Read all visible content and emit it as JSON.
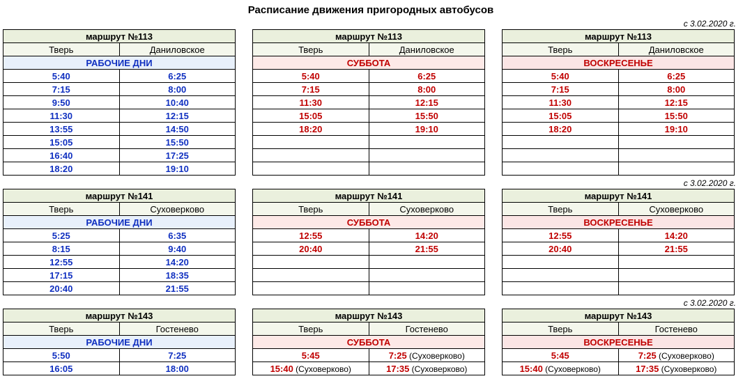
{
  "title": "Расписание движения пригородных автобусов",
  "effective_date": "с 3.02.2020 г.",
  "day_labels": {
    "weekday": "РАБОЧИЕ ДНИ",
    "saturday": "СУББОТА",
    "sunday": "ВОСКРЕСЕНЬЕ"
  },
  "colors": {
    "header_bg": "#eaf0dd",
    "stops_bg": "#f4f7ec",
    "weekday_bg": "#e8f0fb",
    "saturday_bg": "#fde9e7",
    "sunday_bg": "#fbe5e5",
    "weekday_text": "#1030c0",
    "weekend_text": "#c00000",
    "border": "#000000"
  },
  "groups": [
    {
      "route": "маршрут №113",
      "stops": [
        "Тверь",
        "Даниловское"
      ],
      "empty_rows": 8,
      "schedules": {
        "weekday": [
          [
            "5:40",
            "6:25"
          ],
          [
            "7:15",
            "8:00"
          ],
          [
            "9:50",
            "10:40"
          ],
          [
            "11:30",
            "12:15"
          ],
          [
            "13:55",
            "14:50"
          ],
          [
            "15:05",
            "15:50"
          ],
          [
            "16:40",
            "17:25"
          ],
          [
            "18:20",
            "19:10"
          ]
        ],
        "saturday": [
          [
            "5:40",
            "6:25"
          ],
          [
            "7:15",
            "8:00"
          ],
          [
            "11:30",
            "12:15"
          ],
          [
            "15:05",
            "15:50"
          ],
          [
            "18:20",
            "19:10"
          ]
        ],
        "sunday": [
          [
            "5:40",
            "6:25"
          ],
          [
            "7:15",
            "8:00"
          ],
          [
            "11:30",
            "12:15"
          ],
          [
            "15:05",
            "15:50"
          ],
          [
            "18:20",
            "19:10"
          ]
        ]
      }
    },
    {
      "route": "маршрут №141",
      "stops": [
        "Тверь",
        "Суховерково"
      ],
      "empty_rows": 5,
      "schedules": {
        "weekday": [
          [
            "5:25",
            "6:35"
          ],
          [
            "8:15",
            "9:40"
          ],
          [
            "12:55",
            "14:20"
          ],
          [
            "17:15",
            "18:35"
          ],
          [
            "20:40",
            "21:55"
          ]
        ],
        "saturday": [
          [
            "12:55",
            "14:20"
          ],
          [
            "20:40",
            "21:55"
          ]
        ],
        "sunday": [
          [
            "12:55",
            "14:20"
          ],
          [
            "20:40",
            "21:55"
          ]
        ]
      }
    },
    {
      "route": "маршрут №143",
      "stops": [
        "Тверь",
        "Гостенево"
      ],
      "empty_rows": 2,
      "schedules": {
        "weekday": [
          [
            "5:50",
            "7:25"
          ],
          [
            "16:05",
            "18:00"
          ]
        ],
        "saturday": [
          [
            "5:45",
            "7:25"
          ],
          [
            "15:40",
            "17:35"
          ]
        ],
        "sunday": [
          [
            "5:45",
            "7:25"
          ],
          [
            "15:40",
            "17:35"
          ]
        ]
      },
      "notes": {
        "saturday": [
          [
            null,
            "(Суховерково)"
          ],
          [
            "(Суховерково)",
            "(Суховерково)"
          ]
        ],
        "sunday": [
          [
            null,
            "(Суховерково)"
          ],
          [
            "(Суховерково)",
            "(Суховерково)"
          ]
        ]
      }
    }
  ]
}
